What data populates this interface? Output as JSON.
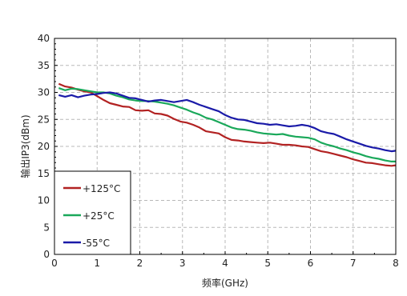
{
  "chart_data": {
    "type": "line",
    "xlabel": "频率(GHz)",
    "ylabel": "输出IP3(dBm)",
    "xlim": [
      0,
      8
    ],
    "ylim": [
      0,
      40
    ],
    "xticks": [
      0,
      1,
      2,
      3,
      4,
      5,
      6,
      7,
      8
    ],
    "yticks": [
      0,
      5,
      10,
      15,
      20,
      25,
      30,
      35,
      40
    ],
    "grid": true,
    "grid_style": "dashed",
    "legend_position": "bottom-left",
    "series": [
      {
        "name": "+125°C",
        "color": "#b22222",
        "x": [
          0.1,
          0.25,
          0.4,
          0.55,
          0.7,
          0.85,
          1.0,
          1.15,
          1.3,
          1.45,
          1.6,
          1.75,
          1.9,
          2.05,
          2.2,
          2.35,
          2.5,
          2.65,
          2.8,
          2.95,
          3.1,
          3.25,
          3.4,
          3.55,
          3.7,
          3.85,
          4.0,
          4.15,
          4.3,
          4.45,
          4.6,
          4.75,
          4.9,
          5.05,
          5.2,
          5.35,
          5.5,
          5.65,
          5.8,
          5.95,
          6.1,
          6.25,
          6.4,
          6.55,
          6.7,
          6.85,
          7.0,
          7.15,
          7.3,
          7.45,
          7.6,
          7.75,
          7.9,
          8.0
        ],
        "y": [
          31.6,
          31.1,
          30.9,
          30.5,
          30.2,
          30.0,
          29.3,
          28.6,
          28.0,
          27.7,
          27.4,
          27.3,
          26.7,
          26.6,
          26.7,
          26.1,
          26.0,
          25.7,
          25.1,
          24.6,
          24.4,
          24.0,
          23.5,
          22.8,
          22.6,
          22.4,
          21.7,
          21.2,
          21.1,
          20.9,
          20.8,
          20.7,
          20.6,
          20.7,
          20.5,
          20.3,
          20.3,
          20.2,
          20.0,
          19.9,
          19.5,
          19.1,
          18.9,
          18.6,
          18.3,
          18.0,
          17.6,
          17.3,
          17.0,
          16.9,
          16.7,
          16.5,
          16.4,
          16.5
        ]
      },
      {
        "name": "+25°C",
        "color": "#1aa85a",
        "x": [
          0.1,
          0.25,
          0.4,
          0.55,
          0.7,
          0.85,
          1.0,
          1.15,
          1.3,
          1.45,
          1.6,
          1.75,
          1.9,
          2.05,
          2.2,
          2.35,
          2.5,
          2.65,
          2.8,
          2.95,
          3.1,
          3.25,
          3.4,
          3.55,
          3.7,
          3.85,
          4.0,
          4.15,
          4.3,
          4.45,
          4.6,
          4.75,
          4.9,
          5.05,
          5.2,
          5.35,
          5.5,
          5.65,
          5.8,
          5.95,
          6.1,
          6.25,
          6.4,
          6.55,
          6.7,
          6.85,
          7.0,
          7.15,
          7.3,
          7.45,
          7.6,
          7.75,
          7.9,
          8.0
        ],
        "y": [
          30.8,
          30.4,
          30.7,
          30.6,
          30.4,
          30.2,
          30.0,
          30.0,
          29.8,
          29.4,
          29.1,
          28.7,
          28.5,
          28.4,
          28.4,
          28.3,
          28.1,
          27.9,
          27.6,
          27.2,
          26.8,
          26.3,
          25.9,
          25.3,
          25.0,
          24.5,
          24.0,
          23.5,
          23.2,
          23.1,
          22.9,
          22.6,
          22.4,
          22.3,
          22.2,
          22.3,
          22.0,
          21.8,
          21.7,
          21.6,
          21.3,
          20.7,
          20.3,
          20.0,
          19.6,
          19.3,
          18.9,
          18.6,
          18.2,
          17.9,
          17.7,
          17.4,
          17.2,
          17.2
        ]
      },
      {
        "name": "-55°C",
        "color": "#1a1aa8",
        "x": [
          0.1,
          0.25,
          0.4,
          0.55,
          0.7,
          0.85,
          1.0,
          1.15,
          1.3,
          1.45,
          1.6,
          1.75,
          1.9,
          2.05,
          2.2,
          2.35,
          2.5,
          2.65,
          2.8,
          2.95,
          3.1,
          3.25,
          3.4,
          3.55,
          3.7,
          3.85,
          4.0,
          4.15,
          4.3,
          4.45,
          4.6,
          4.75,
          4.9,
          5.05,
          5.2,
          5.35,
          5.5,
          5.65,
          5.8,
          5.95,
          6.1,
          6.25,
          6.4,
          6.55,
          6.7,
          6.85,
          7.0,
          7.15,
          7.3,
          7.45,
          7.6,
          7.75,
          7.9,
          8.0
        ],
        "y": [
          29.5,
          29.2,
          29.5,
          29.1,
          29.4,
          29.6,
          29.7,
          29.9,
          30.0,
          29.8,
          29.4,
          29.0,
          28.9,
          28.6,
          28.3,
          28.5,
          28.6,
          28.4,
          28.2,
          28.4,
          28.6,
          28.2,
          27.7,
          27.3,
          26.9,
          26.5,
          25.8,
          25.3,
          25.0,
          24.9,
          24.6,
          24.3,
          24.2,
          24.0,
          24.1,
          23.9,
          23.7,
          23.8,
          24.0,
          23.8,
          23.4,
          22.8,
          22.5,
          22.3,
          21.8,
          21.3,
          20.9,
          20.5,
          20.1,
          19.8,
          19.6,
          19.3,
          19.1,
          19.2
        ]
      }
    ]
  }
}
